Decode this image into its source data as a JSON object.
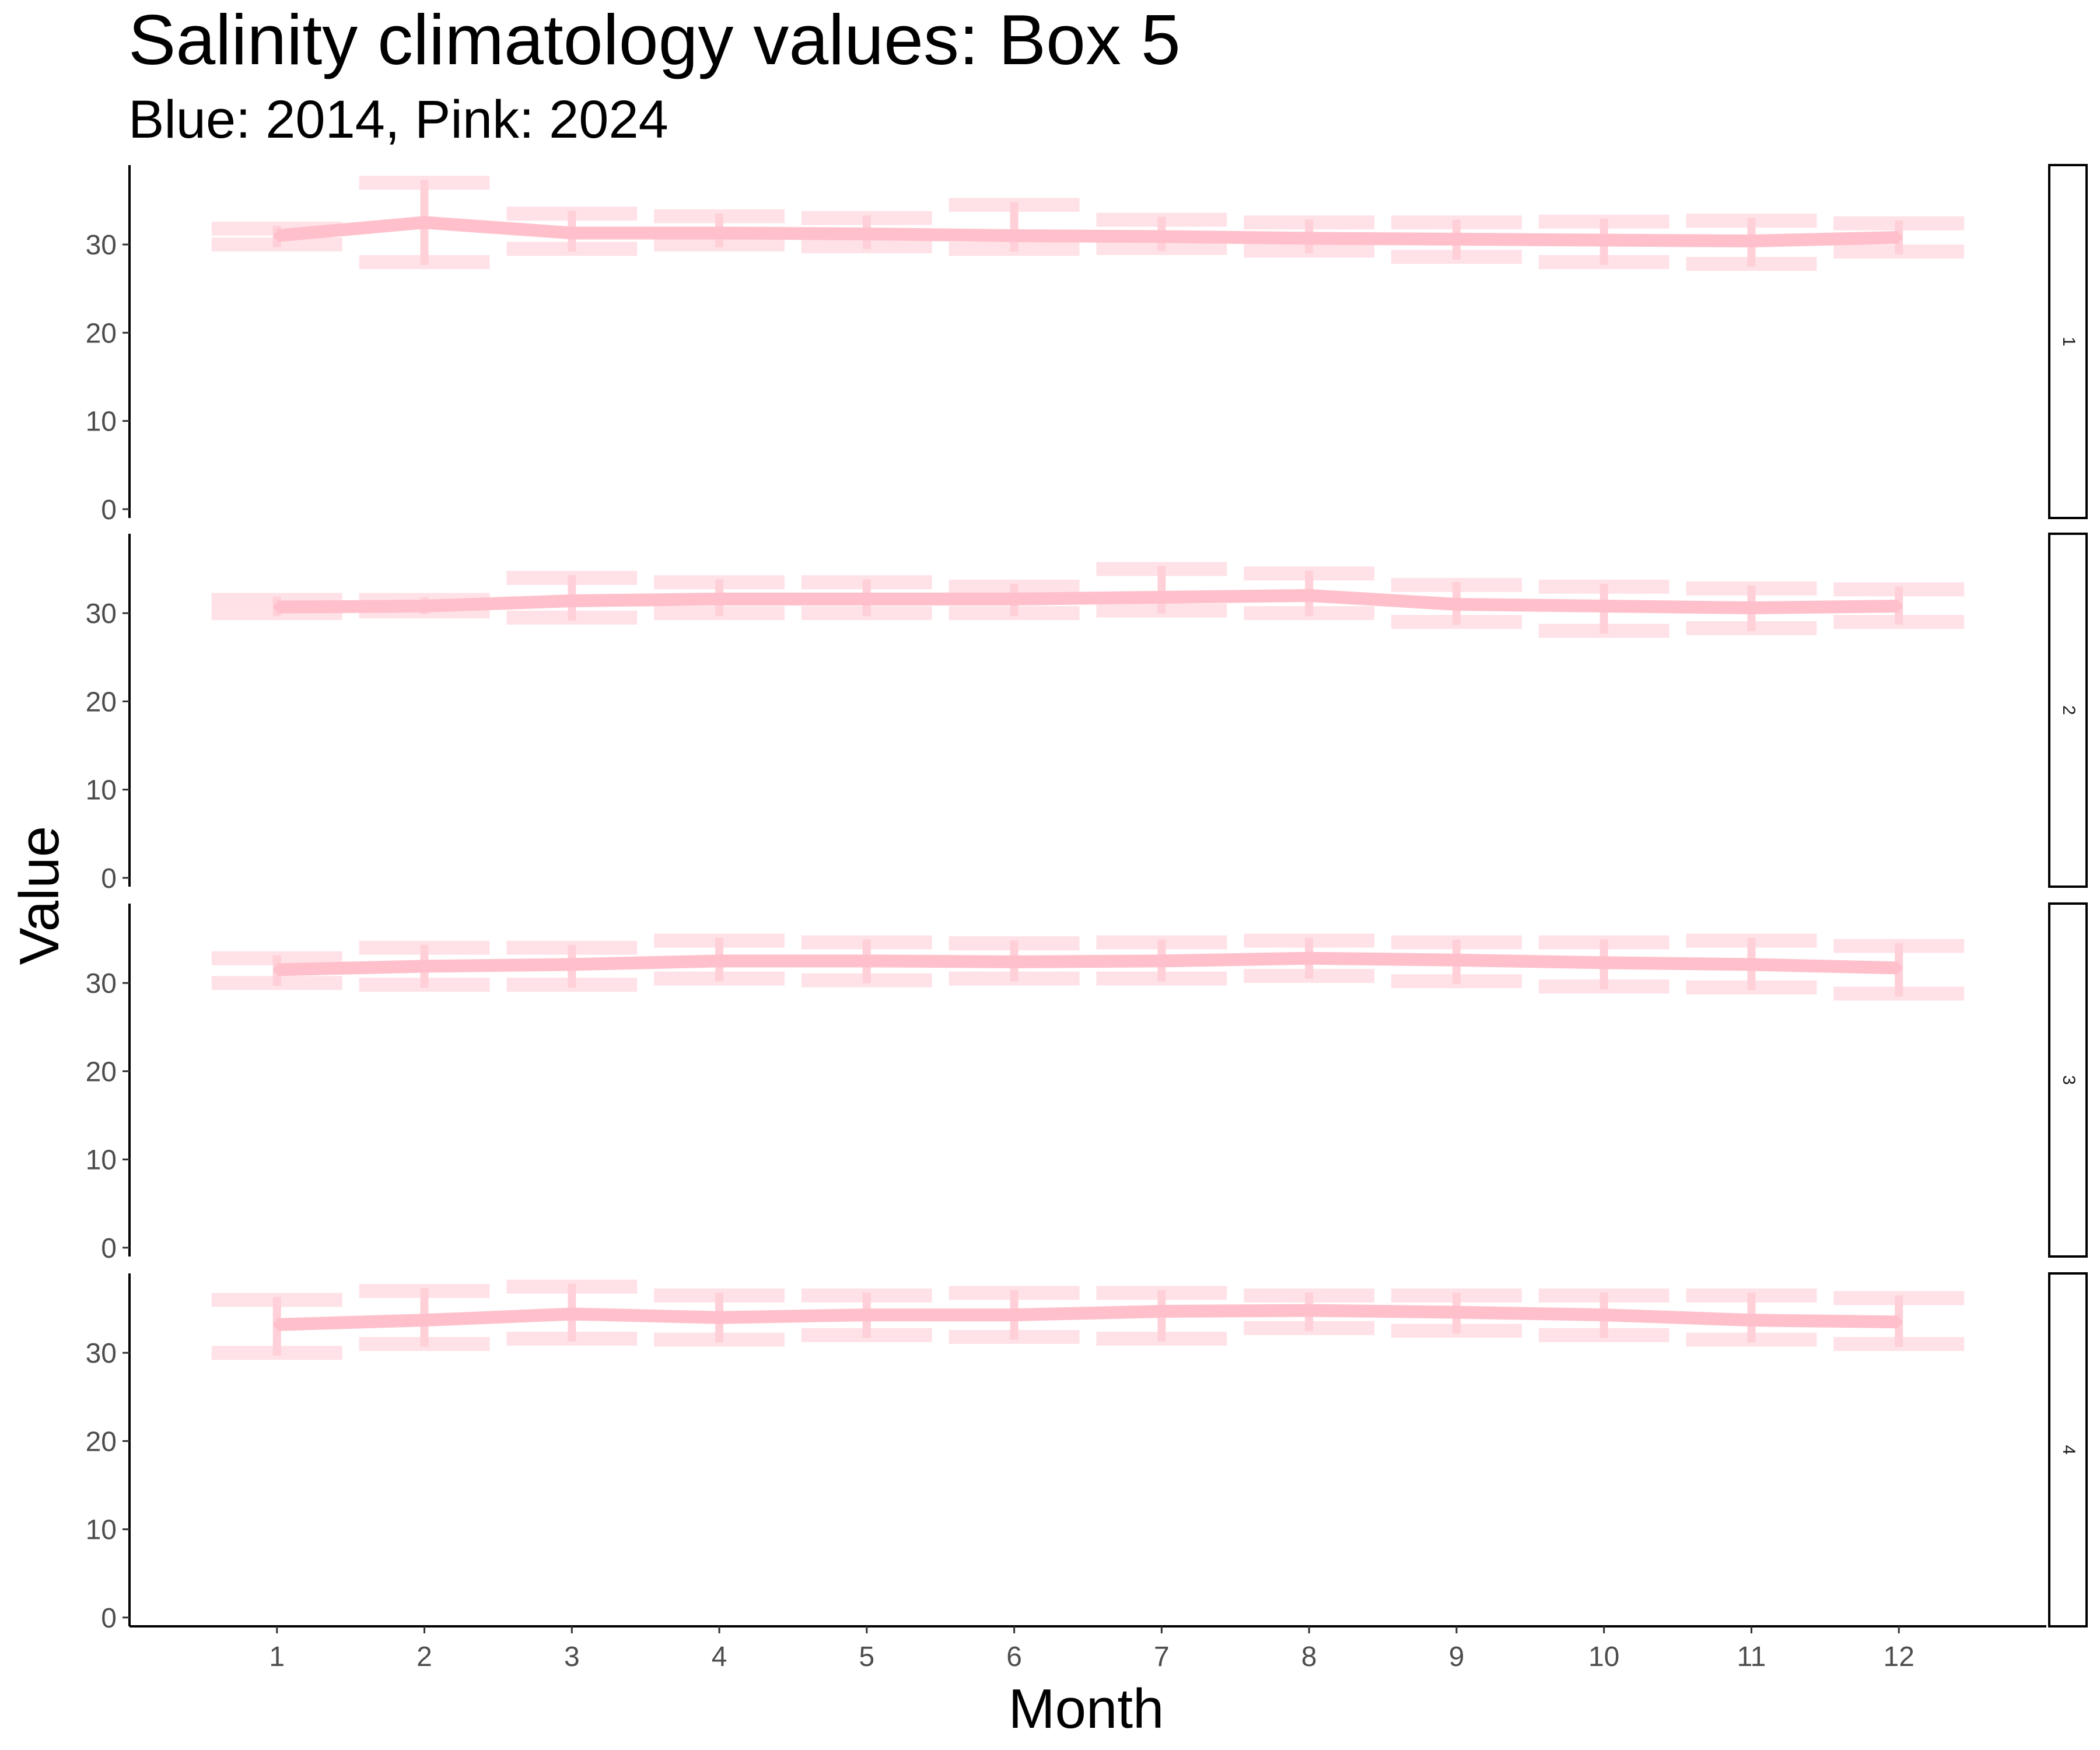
{
  "chart_data": {
    "type": "line",
    "title": "Salinity climatology values: Box 5",
    "subtitle": "Blue: 2014, Pink: 2024",
    "xlabel": "Month",
    "ylabel": "Value",
    "x": [
      1,
      2,
      3,
      4,
      5,
      6,
      7,
      8,
      9,
      10,
      11,
      12
    ],
    "xlim": [
      0,
      13
    ],
    "ylim": [
      -1,
      39
    ],
    "yticks": [
      0,
      10,
      20,
      30
    ],
    "grid": false,
    "colors": {
      "line": "#ffc0cb",
      "band": "#ffdde3",
      "errorbar": "#ffd0d8"
    },
    "panels": [
      {
        "label": "1",
        "series": [
          {
            "values": [
              31.0,
              32.5,
              31.3,
              31.3,
              31.2,
              31.0,
              30.9,
              30.7,
              30.6,
              30.5,
              30.4,
              30.8
            ],
            "lower": [
              30.0,
              28.0,
              29.5,
              30.0,
              29.8,
              29.5,
              29.6,
              29.3,
              28.6,
              28.0,
              27.8,
              29.2
            ],
            "upper": [
              31.8,
              37.0,
              33.5,
              33.2,
              33.0,
              34.5,
              32.8,
              32.5,
              32.5,
              32.6,
              32.7,
              32.4
            ]
          }
        ]
      },
      {
        "label": "2",
        "series": [
          {
            "values": [
              30.7,
              30.8,
              31.4,
              31.6,
              31.6,
              31.6,
              31.8,
              32.0,
              31.0,
              30.8,
              30.6,
              30.8
            ],
            "lower": [
              30.0,
              30.2,
              29.5,
              30.0,
              30.0,
              30.0,
              30.3,
              30.0,
              29.0,
              28.0,
              28.3,
              29.0
            ],
            "upper": [
              31.5,
              31.5,
              34.0,
              33.5,
              33.5,
              33.0,
              35.0,
              34.5,
              33.2,
              33.0,
              32.8,
              32.7
            ]
          }
        ]
      },
      {
        "label": "3",
        "series": [
          {
            "values": [
              31.5,
              31.9,
              32.1,
              32.5,
              32.5,
              32.4,
              32.5,
              32.8,
              32.6,
              32.3,
              32.1,
              31.7
            ],
            "lower": [
              30.0,
              29.8,
              29.8,
              30.5,
              30.3,
              30.5,
              30.5,
              30.8,
              30.2,
              29.6,
              29.5,
              28.8
            ],
            "upper": [
              32.8,
              34.0,
              34.0,
              34.8,
              34.6,
              34.5,
              34.6,
              34.8,
              34.6,
              34.6,
              34.8,
              34.2
            ]
          }
        ]
      },
      {
        "label": "4",
        "series": [
          {
            "values": [
              33.2,
              33.7,
              34.4,
              34.0,
              34.3,
              34.3,
              34.7,
              34.8,
              34.6,
              34.3,
              33.7,
              33.5
            ],
            "lower": [
              30.0,
              31.0,
              31.6,
              31.5,
              32.0,
              31.8,
              31.6,
              32.8,
              32.5,
              32.0,
              31.5,
              31.0
            ],
            "upper": [
              36.0,
              37.0,
              37.5,
              36.5,
              36.5,
              36.8,
              36.8,
              36.5,
              36.5,
              36.5,
              36.5,
              36.2
            ]
          }
        ]
      }
    ]
  }
}
